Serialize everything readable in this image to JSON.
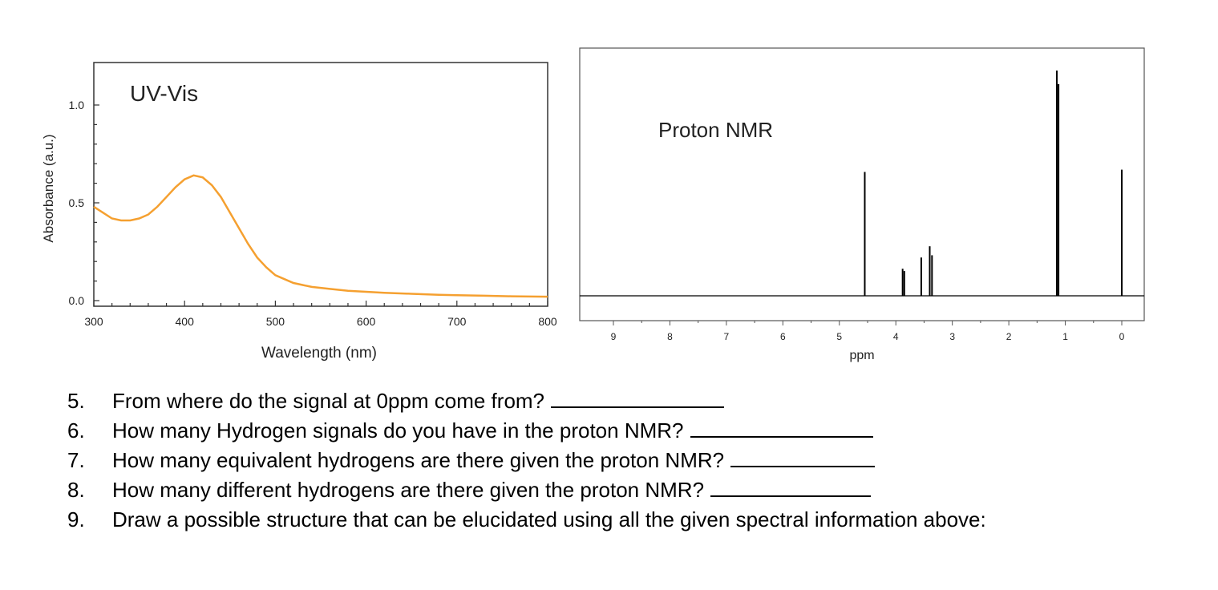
{
  "chart_data": [
    {
      "type": "line",
      "title": "UV-Vis",
      "xlabel": "Wavelength (nm)",
      "ylabel": "Absorbance (a.u.)",
      "xlim": [
        300,
        800
      ],
      "ylim": [
        0.0,
        1.0
      ],
      "x_ticks": [
        "300",
        "400",
        "500",
        "600",
        "700",
        "800"
      ],
      "y_ticks": [
        "0.0",
        "0.5",
        "1.0"
      ],
      "series": [
        {
          "color": "#f5a030",
          "x": [
            300,
            310,
            320,
            330,
            340,
            350,
            360,
            370,
            380,
            390,
            400,
            410,
            420,
            430,
            440,
            450,
            460,
            470,
            480,
            490,
            500,
            510,
            520,
            530,
            540,
            550,
            560,
            580,
            600,
            620,
            650,
            680,
            700,
            730,
            760,
            800
          ],
          "y": [
            0.48,
            0.45,
            0.42,
            0.41,
            0.41,
            0.42,
            0.44,
            0.48,
            0.53,
            0.58,
            0.62,
            0.64,
            0.63,
            0.59,
            0.53,
            0.45,
            0.37,
            0.29,
            0.22,
            0.17,
            0.13,
            0.11,
            0.09,
            0.08,
            0.07,
            0.065,
            0.06,
            0.05,
            0.045,
            0.04,
            0.035,
            0.03,
            0.028,
            0.025,
            0.022,
            0.02
          ]
        }
      ],
      "grid": false
    },
    {
      "type": "line",
      "title": "Proton NMR",
      "xlabel": "ppm",
      "xlim": [
        9.5,
        -0.4
      ],
      "ylim": [
        0,
        100
      ],
      "x_ticks": [
        "9",
        "8",
        "7",
        "6",
        "5",
        "4",
        "3",
        "2",
        "1",
        "0"
      ],
      "peaks": [
        {
          "ppm": 4.55,
          "height": 55
        },
        {
          "ppm": 3.88,
          "height": 12
        },
        {
          "ppm": 3.85,
          "height": 11
        },
        {
          "ppm": 3.55,
          "height": 17
        },
        {
          "ppm": 3.4,
          "height": 22
        },
        {
          "ppm": 3.36,
          "height": 18
        },
        {
          "ppm": 1.15,
          "height": 100
        },
        {
          "ppm": 1.12,
          "height": 94
        },
        {
          "ppm": 0.0,
          "height": 56
        }
      ],
      "grid": false
    }
  ],
  "questions": [
    {
      "number": "5.",
      "text": "From where do the signal at 0ppm come from?"
    },
    {
      "number": "6.",
      "text": "How many Hydrogen signals do you have in the proton NMR?"
    },
    {
      "number": "7.",
      "text": "How many equivalent hydrogens are there given the proton NMR?"
    },
    {
      "number": "8.",
      "text": "How many different hydrogens are there given the proton NMR?"
    },
    {
      "number": "9.",
      "text": "Draw a possible structure that can be elucidated using all the given spectral information above:"
    }
  ]
}
